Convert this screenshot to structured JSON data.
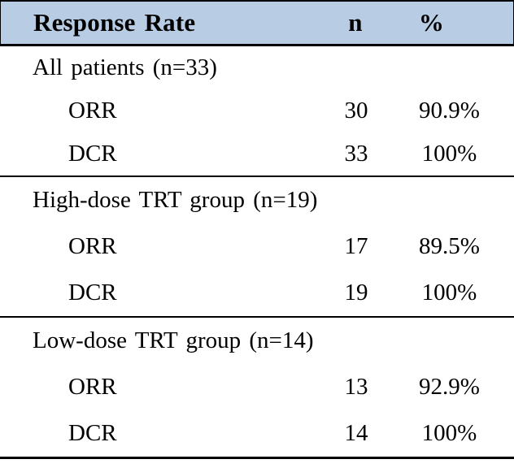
{
  "table": {
    "header": {
      "col_label": "Response Rate",
      "col_n": "n",
      "col_pct": "%"
    },
    "sections": [
      {
        "group": "All patients (n=33)",
        "rows": [
          {
            "label": "ORR",
            "n": "30",
            "pct": "90.9%"
          },
          {
            "label": "DCR",
            "n": "33",
            "pct": "100%"
          }
        ]
      },
      {
        "group": "High-dose TRT group (n=19)",
        "rows": [
          {
            "label": "ORR",
            "n": "17",
            "pct": "89.5%"
          },
          {
            "label": "DCR",
            "n": "19",
            "pct": "100%"
          }
        ]
      },
      {
        "group": "Low-dose TRT group (n=14)",
        "rows": [
          {
            "label": "ORR",
            "n": "13",
            "pct": "92.9%"
          },
          {
            "label": "DCR",
            "n": "14",
            "pct": "100%"
          }
        ]
      }
    ],
    "colors": {
      "header_bg": "#b8cce4",
      "border": "#000000",
      "text": "#000000"
    }
  },
  "chart_data": {
    "type": "table",
    "title": "Response Rate",
    "columns": [
      "Response Rate",
      "n",
      "%"
    ],
    "groups": [
      {
        "name": "All patients",
        "n_total": 33,
        "ORR": {
          "n": 30,
          "pct": 90.9
        },
        "DCR": {
          "n": 33,
          "pct": 100
        }
      },
      {
        "name": "High-dose TRT group",
        "n_total": 19,
        "ORR": {
          "n": 17,
          "pct": 89.5
        },
        "DCR": {
          "n": 19,
          "pct": 100
        }
      },
      {
        "name": "Low-dose TRT group",
        "n_total": 14,
        "ORR": {
          "n": 13,
          "pct": 92.9
        },
        "DCR": {
          "n": 14,
          "pct": 100
        }
      }
    ]
  }
}
